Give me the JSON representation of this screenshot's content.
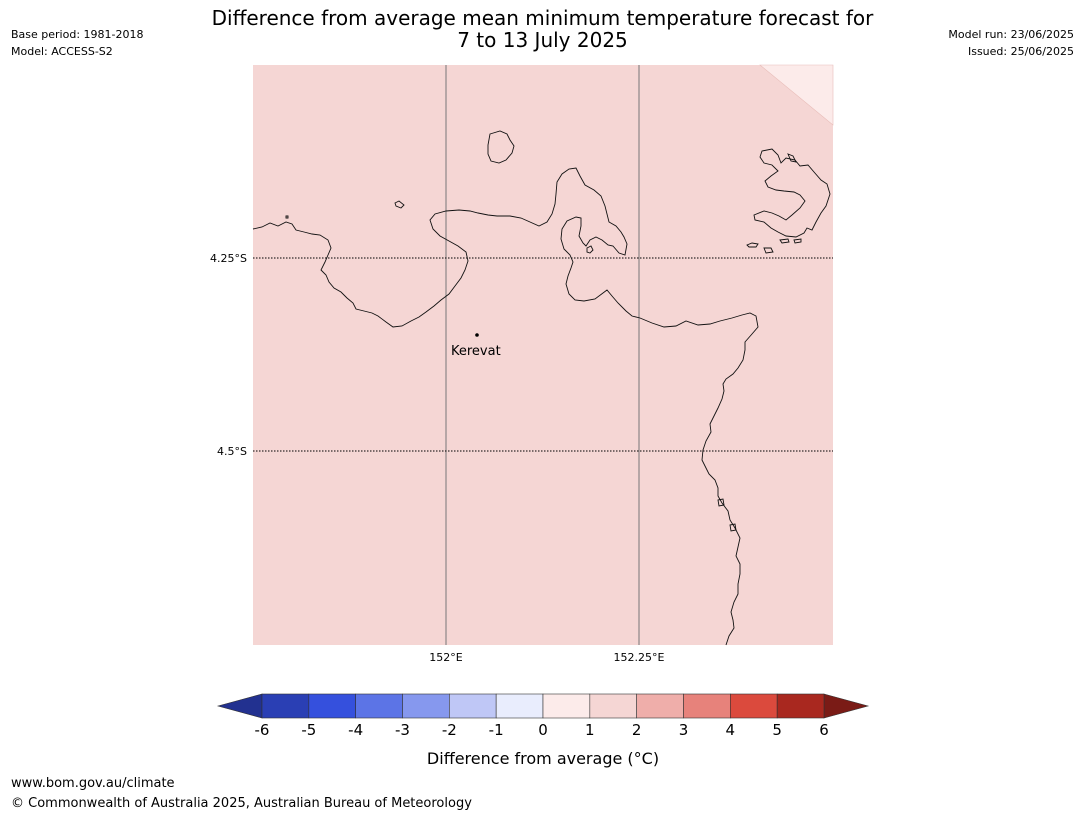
{
  "header": {
    "title_line1": "Difference from average mean minimum temperature forecast for",
    "title_line2": "7 to 13 July 2025",
    "base_period": "Base period: 1981-2018",
    "model": "Model: ACCESS-S2",
    "model_run": "Model run: 23/06/2025",
    "issued": "Issued: 25/06/2025"
  },
  "map": {
    "place_label": "Kerevat",
    "lon_labels": [
      "152°E",
      "152.25°E"
    ],
    "lat_labels": [
      "4.25°S",
      "4.5°S"
    ],
    "fill_color": "#f5d6d4",
    "corner_color": "#fcebea"
  },
  "colorbar": {
    "ticks": [
      "-6",
      "-5",
      "-4",
      "-3",
      "-2",
      "-1",
      "0",
      "1",
      "2",
      "3",
      "4",
      "5",
      "6"
    ],
    "colors_below": "#223190",
    "colors": [
      "#2a3fb4",
      "#3550dd",
      "#5c74e6",
      "#8698ee",
      "#bfc7f6",
      "#e9edfd",
      "#fcebea",
      "#f5d6d4",
      "#efaeaa",
      "#e7827b",
      "#db4a3d",
      "#a9281f"
    ],
    "colors_above": "#7a1b16",
    "label": "Difference from average (°C)"
  },
  "footer": {
    "url": "www.bom.gov.au/climate",
    "copyright": "© Commonwealth of Australia 2025, Australian Bureau of Meteorology"
  }
}
